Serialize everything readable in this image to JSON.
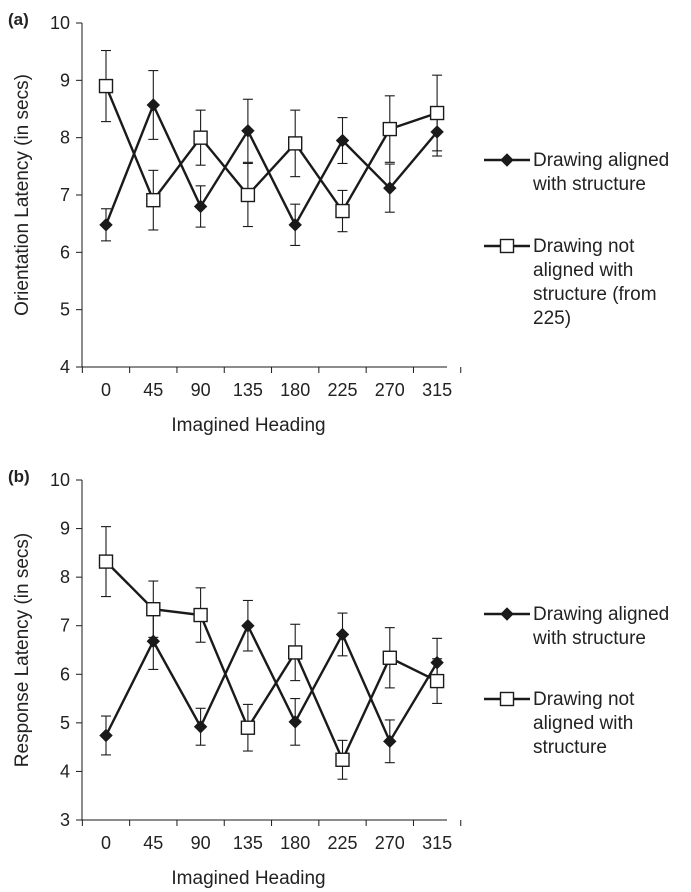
{
  "chart_data": [
    {
      "panel_label": "(a)",
      "type": "line",
      "categories": [
        "0",
        "45",
        "90",
        "135",
        "180",
        "225",
        "270",
        "315"
      ],
      "xlabel": "Imagined Heading",
      "ylabel": "Orientation Latency (in secs)",
      "ylim": [
        4,
        10
      ],
      "yticks": [
        "4",
        "5",
        "6",
        "7",
        "8",
        "9",
        "10"
      ],
      "error_bars": true,
      "legend_position": "right",
      "series": [
        {
          "name": "Drawing aligned with structure",
          "marker": "filled-diamond",
          "values": [
            6.48,
            8.57,
            6.8,
            8.12,
            6.48,
            7.95,
            7.12,
            8.1
          ],
          "errors": [
            0.28,
            0.6,
            0.36,
            0.55,
            0.36,
            0.4,
            0.42,
            0.42
          ]
        },
        {
          "name": "Drawing not aligned with structure (from 225)",
          "marker": "open-square",
          "values": [
            8.9,
            6.91,
            8.0,
            7.0,
            7.9,
            6.72,
            8.15,
            8.43
          ],
          "errors": [
            0.62,
            0.52,
            0.48,
            0.55,
            0.58,
            0.36,
            0.58,
            0.66
          ]
        }
      ],
      "legend": [
        {
          "lines": [
            "Drawing aligned",
            "with structure"
          ]
        },
        {
          "lines": [
            "Drawing not",
            "aligned with",
            "structure (from",
            "225)"
          ]
        }
      ]
    },
    {
      "panel_label": "(b)",
      "type": "line",
      "categories": [
        "0",
        "45",
        "90",
        "135",
        "180",
        "225",
        "270",
        "315"
      ],
      "xlabel": "Imagined Heading",
      "ylabel": "Response Latency (in secs)",
      "ylim": [
        3,
        10
      ],
      "yticks": [
        "3",
        "4",
        "5",
        "6",
        "7",
        "8",
        "9",
        "10"
      ],
      "error_bars": true,
      "legend_position": "right",
      "series": [
        {
          "name": "Drawing aligned with structure",
          "marker": "filled-diamond",
          "values": [
            4.74,
            6.68,
            4.92,
            7.0,
            5.02,
            6.82,
            4.62,
            6.24
          ],
          "errors": [
            0.4,
            0.58,
            0.38,
            0.52,
            0.48,
            0.44,
            0.44,
            0.5
          ]
        },
        {
          "name": "Drawing not aligned with structure",
          "marker": "open-square",
          "values": [
            8.32,
            7.34,
            7.22,
            4.9,
            6.45,
            4.24,
            6.34,
            5.86
          ],
          "errors": [
            0.72,
            0.58,
            0.56,
            0.48,
            0.58,
            0.4,
            0.62,
            0.46
          ]
        }
      ],
      "legend": [
        {
          "lines": [
            "Drawing aligned",
            "with structure"
          ]
        },
        {
          "lines": [
            "Drawing not",
            "aligned with",
            "structure"
          ]
        }
      ]
    }
  ]
}
